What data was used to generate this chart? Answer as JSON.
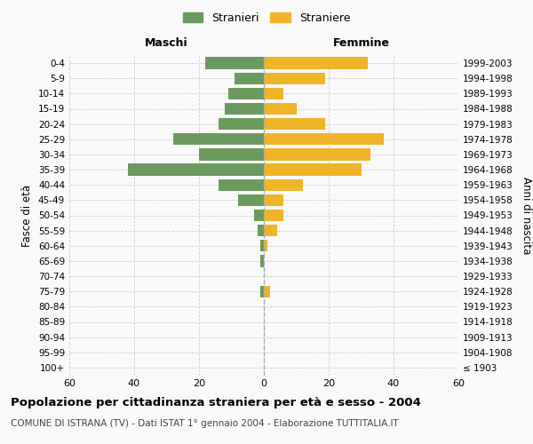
{
  "age_groups": [
    "100+",
    "95-99",
    "90-94",
    "85-89",
    "80-84",
    "75-79",
    "70-74",
    "65-69",
    "60-64",
    "55-59",
    "50-54",
    "45-49",
    "40-44",
    "35-39",
    "30-34",
    "25-29",
    "20-24",
    "15-19",
    "10-14",
    "5-9",
    "0-4"
  ],
  "birth_years": [
    "≤ 1903",
    "1904-1908",
    "1909-1913",
    "1914-1918",
    "1919-1923",
    "1924-1928",
    "1929-1933",
    "1934-1938",
    "1939-1943",
    "1944-1948",
    "1949-1953",
    "1954-1958",
    "1959-1963",
    "1964-1968",
    "1969-1973",
    "1974-1978",
    "1979-1983",
    "1984-1988",
    "1989-1993",
    "1994-1998",
    "1999-2003"
  ],
  "males": [
    0,
    0,
    0,
    0,
    0,
    1,
    0,
    1,
    1,
    2,
    3,
    8,
    14,
    42,
    20,
    28,
    14,
    12,
    11,
    9,
    18
  ],
  "females": [
    0,
    0,
    0,
    0,
    0,
    2,
    0,
    0,
    1,
    4,
    6,
    6,
    12,
    30,
    33,
    37,
    19,
    10,
    6,
    19,
    32
  ],
  "male_color": "#6b9a5e",
  "female_color": "#f0b429",
  "background_color": "#f9f9f9",
  "grid_color": "#cccccc",
  "title": "Popolazione per cittadinanza straniera per età e sesso - 2004",
  "subtitle": "COMUNE DI ISTRANA (TV) - Dati ISTAT 1° gennaio 2004 - Elaborazione TUTTITALIA.IT",
  "ylabel_left": "Fasce di età",
  "ylabel_right": "Anni di nascita",
  "xlabel_left": "Maschi",
  "xlabel_right": "Femmine",
  "legend_stranieri": "Stranieri",
  "legend_straniere": "Straniere",
  "xlim": 60,
  "figwidth": 6.0,
  "figheight": 5.0,
  "dpi": 100
}
